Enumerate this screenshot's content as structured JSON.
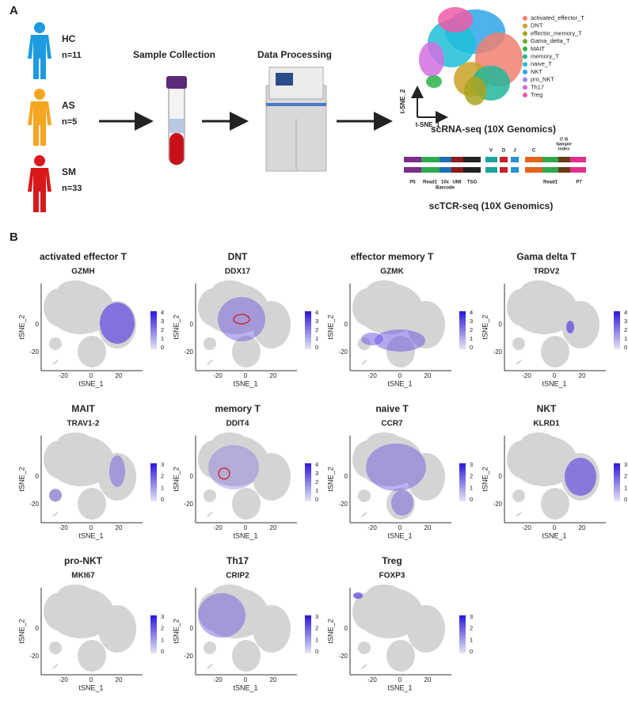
{
  "panel_a": {
    "label": "A",
    "groups": [
      {
        "name": "HC",
        "n": "n=11",
        "color": "#1e9be0"
      },
      {
        "name": "AS",
        "n": "n=5",
        "color": "#f5a623"
      },
      {
        "name": "SM",
        "n": "n=33",
        "color": "#d7191c"
      }
    ],
    "steps": [
      "Sample Collection",
      "Data Processing"
    ],
    "tsne_axes": {
      "y": "t-SNE_2",
      "x": "t-SNE_1"
    },
    "legend": [
      {
        "name": "activated_effector_T",
        "color": "#f08070"
      },
      {
        "name": "DNT",
        "color": "#c9a227"
      },
      {
        "name": "effector_memory_T",
        "color": "#a9a520"
      },
      {
        "name": "Gama_delta_T",
        "color": "#6aaa2e"
      },
      {
        "name": "MAIT",
        "color": "#2bb24a"
      },
      {
        "name": "memory_T",
        "color": "#22b69a"
      },
      {
        "name": "naive_T",
        "color": "#1fc0d8"
      },
      {
        "name": "NKT",
        "color": "#2fa4e7"
      },
      {
        "name": "pro_NKT",
        "color": "#9a8ee8"
      },
      {
        "name": "Th17",
        "color": "#d46ee0"
      },
      {
        "name": "Treg",
        "color": "#f05aa8"
      }
    ],
    "scrna_title": "scRNA-seq (10X Genomics)",
    "tcr": {
      "V": "V",
      "D": "D",
      "J": "J",
      "C": "C",
      "index": [
        "i7 i5",
        "Sample",
        "index"
      ],
      "P5": "P5",
      "Read1_left": "Read1",
      "barcode": [
        "10x",
        "Barcode"
      ],
      "UMI": "UMI",
      "TSO": "TSO",
      "Read1_right": "Read1",
      "P7": "P7"
    },
    "sctcr_title": "scTCR-seq (10X Genomics)"
  },
  "panel_b": {
    "label": "B",
    "axes": {
      "xlabel": "tSNE_1",
      "ylabel": "tSNE_2",
      "xticks": [
        -20,
        0,
        20
      ],
      "yticks": [
        0,
        -20
      ]
    },
    "plots": [
      {
        "cell_type": "activated effector T",
        "gene": "GZMH",
        "colorbar_ticks": [
          4,
          3,
          2,
          1,
          0
        ]
      },
      {
        "cell_type": "DNT",
        "gene": "DDX17",
        "colorbar_ticks": [
          4,
          3,
          2,
          1,
          0
        ]
      },
      {
        "cell_type": "effector memory T",
        "gene": "GZMK",
        "colorbar_ticks": [
          4,
          3,
          2,
          1,
          0
        ]
      },
      {
        "cell_type": "Gama delta T",
        "gene": "TRDV2",
        "colorbar_ticks": [
          4,
          3,
          2,
          1,
          0
        ]
      },
      {
        "cell_type": "MAIT",
        "gene": "TRAV1-2",
        "colorbar_ticks": [
          3,
          2,
          1,
          0
        ]
      },
      {
        "cell_type": "memory T",
        "gene": "DDIT4",
        "colorbar_ticks": [
          4,
          3,
          2,
          1,
          0
        ]
      },
      {
        "cell_type": "naive T",
        "gene": "CCR7",
        "colorbar_ticks": [
          3,
          2,
          1,
          0
        ]
      },
      {
        "cell_type": "NKT",
        "gene": "KLRD1",
        "colorbar_ticks": [
          3,
          2,
          1,
          0
        ]
      },
      {
        "cell_type": "pro-NKT",
        "gene": "MKI67",
        "colorbar_ticks": [
          3,
          2,
          1,
          0
        ]
      },
      {
        "cell_type": "Th17",
        "gene": "CRIP2",
        "colorbar_ticks": [
          3,
          2,
          1,
          0
        ]
      },
      {
        "cell_type": "Treg",
        "gene": "FOXP3",
        "colorbar_ticks": [
          3,
          2,
          1,
          0
        ]
      }
    ]
  }
}
